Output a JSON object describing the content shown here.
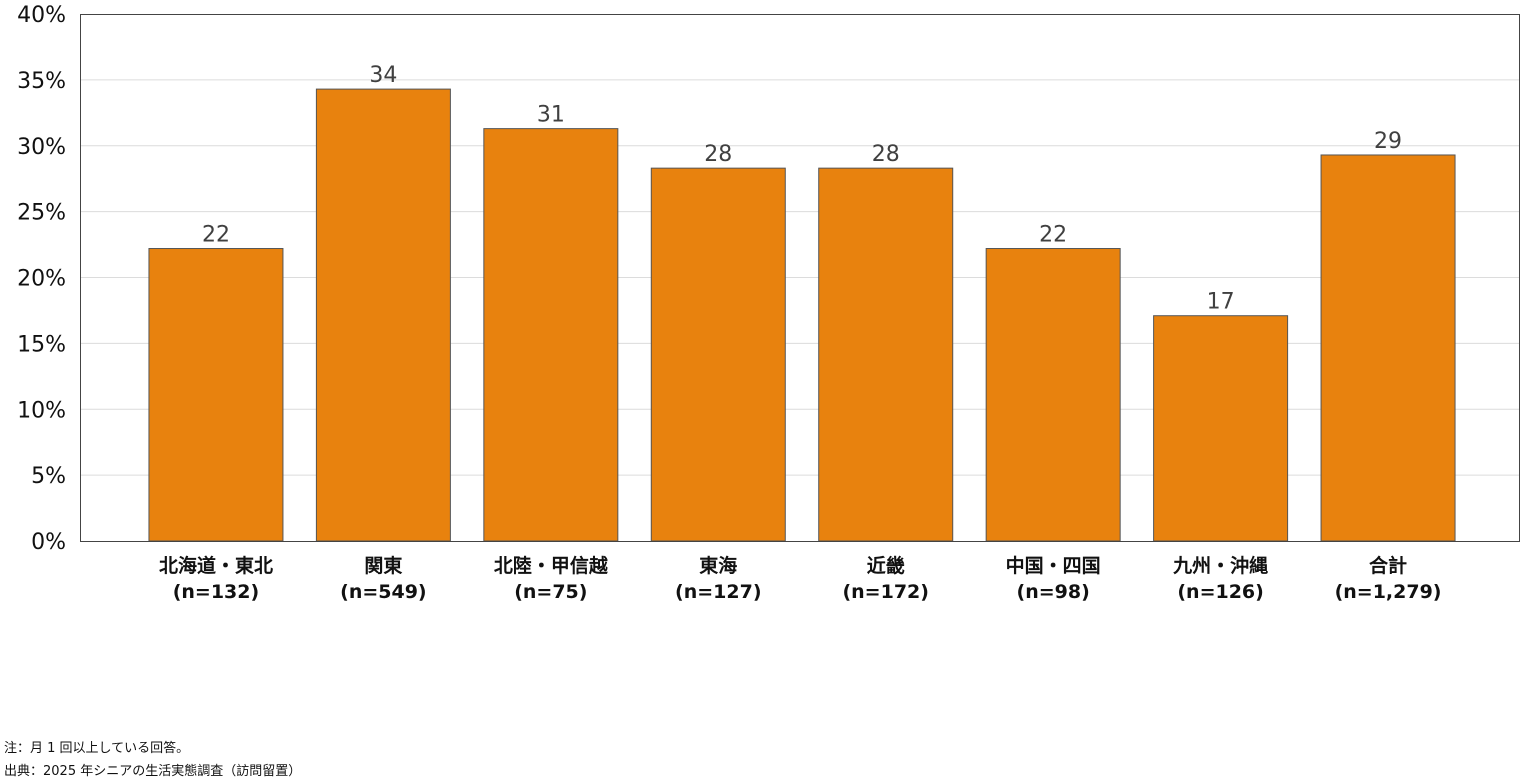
{
  "chart_data": {
    "type": "bar",
    "categories": [
      {
        "name": "北海道・東北",
        "n": "(n=132)"
      },
      {
        "name": "関東",
        "n": "(n=549)"
      },
      {
        "name": "北陸・甲信越",
        "n": "(n=75)"
      },
      {
        "name": "東海",
        "n": "(n=127)"
      },
      {
        "name": "近畿",
        "n": "(n=172)"
      },
      {
        "name": "中国・四国",
        "n": "(n=98)"
      },
      {
        "name": "九州・沖縄",
        "n": "(n=126)"
      },
      {
        "name": "合計",
        "n": "(n=1,279)"
      }
    ],
    "values": [
      22.2,
      34.3,
      31.3,
      28.3,
      28.3,
      22.2,
      17.1,
      29.3
    ],
    "data_labels": [
      "22",
      "34",
      "31",
      "28",
      "28",
      "22",
      "17",
      "29"
    ],
    "yticks": [
      "0%",
      "5%",
      "10%",
      "15%",
      "20%",
      "25%",
      "30%",
      "35%",
      "40%"
    ],
    "ylim": [
      0,
      40
    ],
    "grid": true,
    "bar_color": "#e8820e",
    "title": "",
    "xlabel": "",
    "ylabel": ""
  },
  "notes": [
    "注：月 1 回以上している回答。",
    "出典：2025 年シニアの生活実態調査（訪問留置）"
  ]
}
